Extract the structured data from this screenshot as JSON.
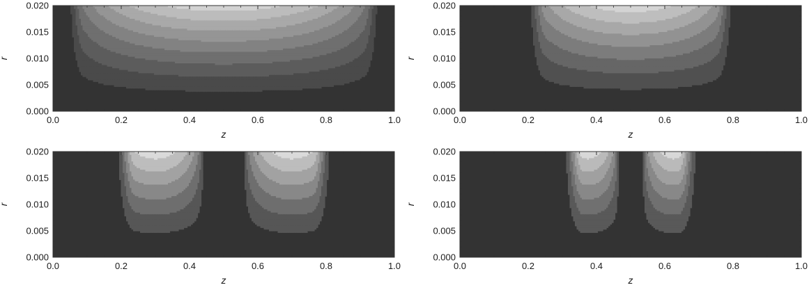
{
  "figure": {
    "background": "#ffffff"
  },
  "chart_data": [
    {
      "type": "heatmap",
      "subtype": "contour",
      "panel": "top-left",
      "xlabel": "z",
      "ylabel": "r",
      "xlim": [
        0.0,
        1.0
      ],
      "ylim": [
        0.0,
        0.02
      ],
      "xticks": [
        "0.0",
        "0.2",
        "0.4",
        "0.6",
        "0.8",
        "1.0"
      ],
      "yticks": [
        "0.000",
        "0.005",
        "0.010",
        "0.015",
        "0.020"
      ],
      "grid": false,
      "contour_levels": 8,
      "shape": "single-lobe",
      "support": [
        0.02,
        0.98
      ],
      "centers": [
        0.5
      ],
      "lobe_width": 0.46,
      "colors": [
        "#333333",
        "#4a4a4a",
        "#5c5c5c",
        "#6f6f6f",
        "#828282",
        "#959595",
        "#a9a9a9",
        "#bcbcbc",
        "#d2d2d2"
      ]
    },
    {
      "type": "heatmap",
      "subtype": "contour",
      "panel": "top-right",
      "xlabel": "z",
      "ylabel": "r",
      "xlim": [
        0.0,
        1.0
      ],
      "ylim": [
        0.0,
        0.02
      ],
      "xticks": [
        "0.0",
        "0.2",
        "0.4",
        "0.6",
        "0.8",
        "1.0"
      ],
      "yticks": [
        "0.000",
        "0.005",
        "0.010",
        "0.015",
        "0.020"
      ],
      "grid": false,
      "contour_levels": 7,
      "shape": "single-lobe",
      "support": [
        0.18,
        0.82
      ],
      "centers": [
        0.5
      ],
      "lobe_width": 0.31,
      "colors": [
        "#333333",
        "#505050",
        "#666666",
        "#7c7c7c",
        "#929292",
        "#a8a8a8",
        "#bebebe",
        "#d4d4d4"
      ]
    },
    {
      "type": "heatmap",
      "subtype": "contour",
      "panel": "bottom-left",
      "xlabel": "z",
      "ylabel": "r",
      "xlim": [
        0.0,
        1.0
      ],
      "ylim": [
        0.0,
        0.02
      ],
      "xticks": [
        "0.0",
        "0.2",
        "0.4",
        "0.6",
        "0.8",
        "1.0"
      ],
      "yticks": [
        "0.000",
        "0.005",
        "0.010",
        "0.015",
        "0.020"
      ],
      "grid": false,
      "contour_levels": 6,
      "shape": "double-lobe",
      "support": [
        0.17,
        0.83
      ],
      "centers": [
        0.3,
        0.7
      ],
      "lobe_width": 0.14,
      "colors": [
        "#333333",
        "#565656",
        "#6e6e6e",
        "#888888",
        "#a2a2a2",
        "#bdbdbd",
        "#dadada"
      ]
    },
    {
      "type": "heatmap",
      "subtype": "contour",
      "panel": "bottom-right",
      "xlabel": "z",
      "ylabel": "r",
      "xlim": [
        0.0,
        1.0
      ],
      "ylim": [
        0.0,
        0.02
      ],
      "xticks": [
        "0.0",
        "0.2",
        "0.4",
        "0.6",
        "0.8",
        "1.0"
      ],
      "yticks": [
        "0.000",
        "0.005",
        "0.010",
        "0.015",
        "0.020"
      ],
      "grid": false,
      "contour_levels": 6,
      "shape": "double-lobe",
      "support": [
        0.29,
        0.71
      ],
      "centers": [
        0.375,
        0.625
      ],
      "lobe_width": 0.09,
      "colors": [
        "#333333",
        "#595959",
        "#707070",
        "#888888",
        "#a0a0a0",
        "#bababa",
        "#d8d8d8"
      ]
    }
  ]
}
